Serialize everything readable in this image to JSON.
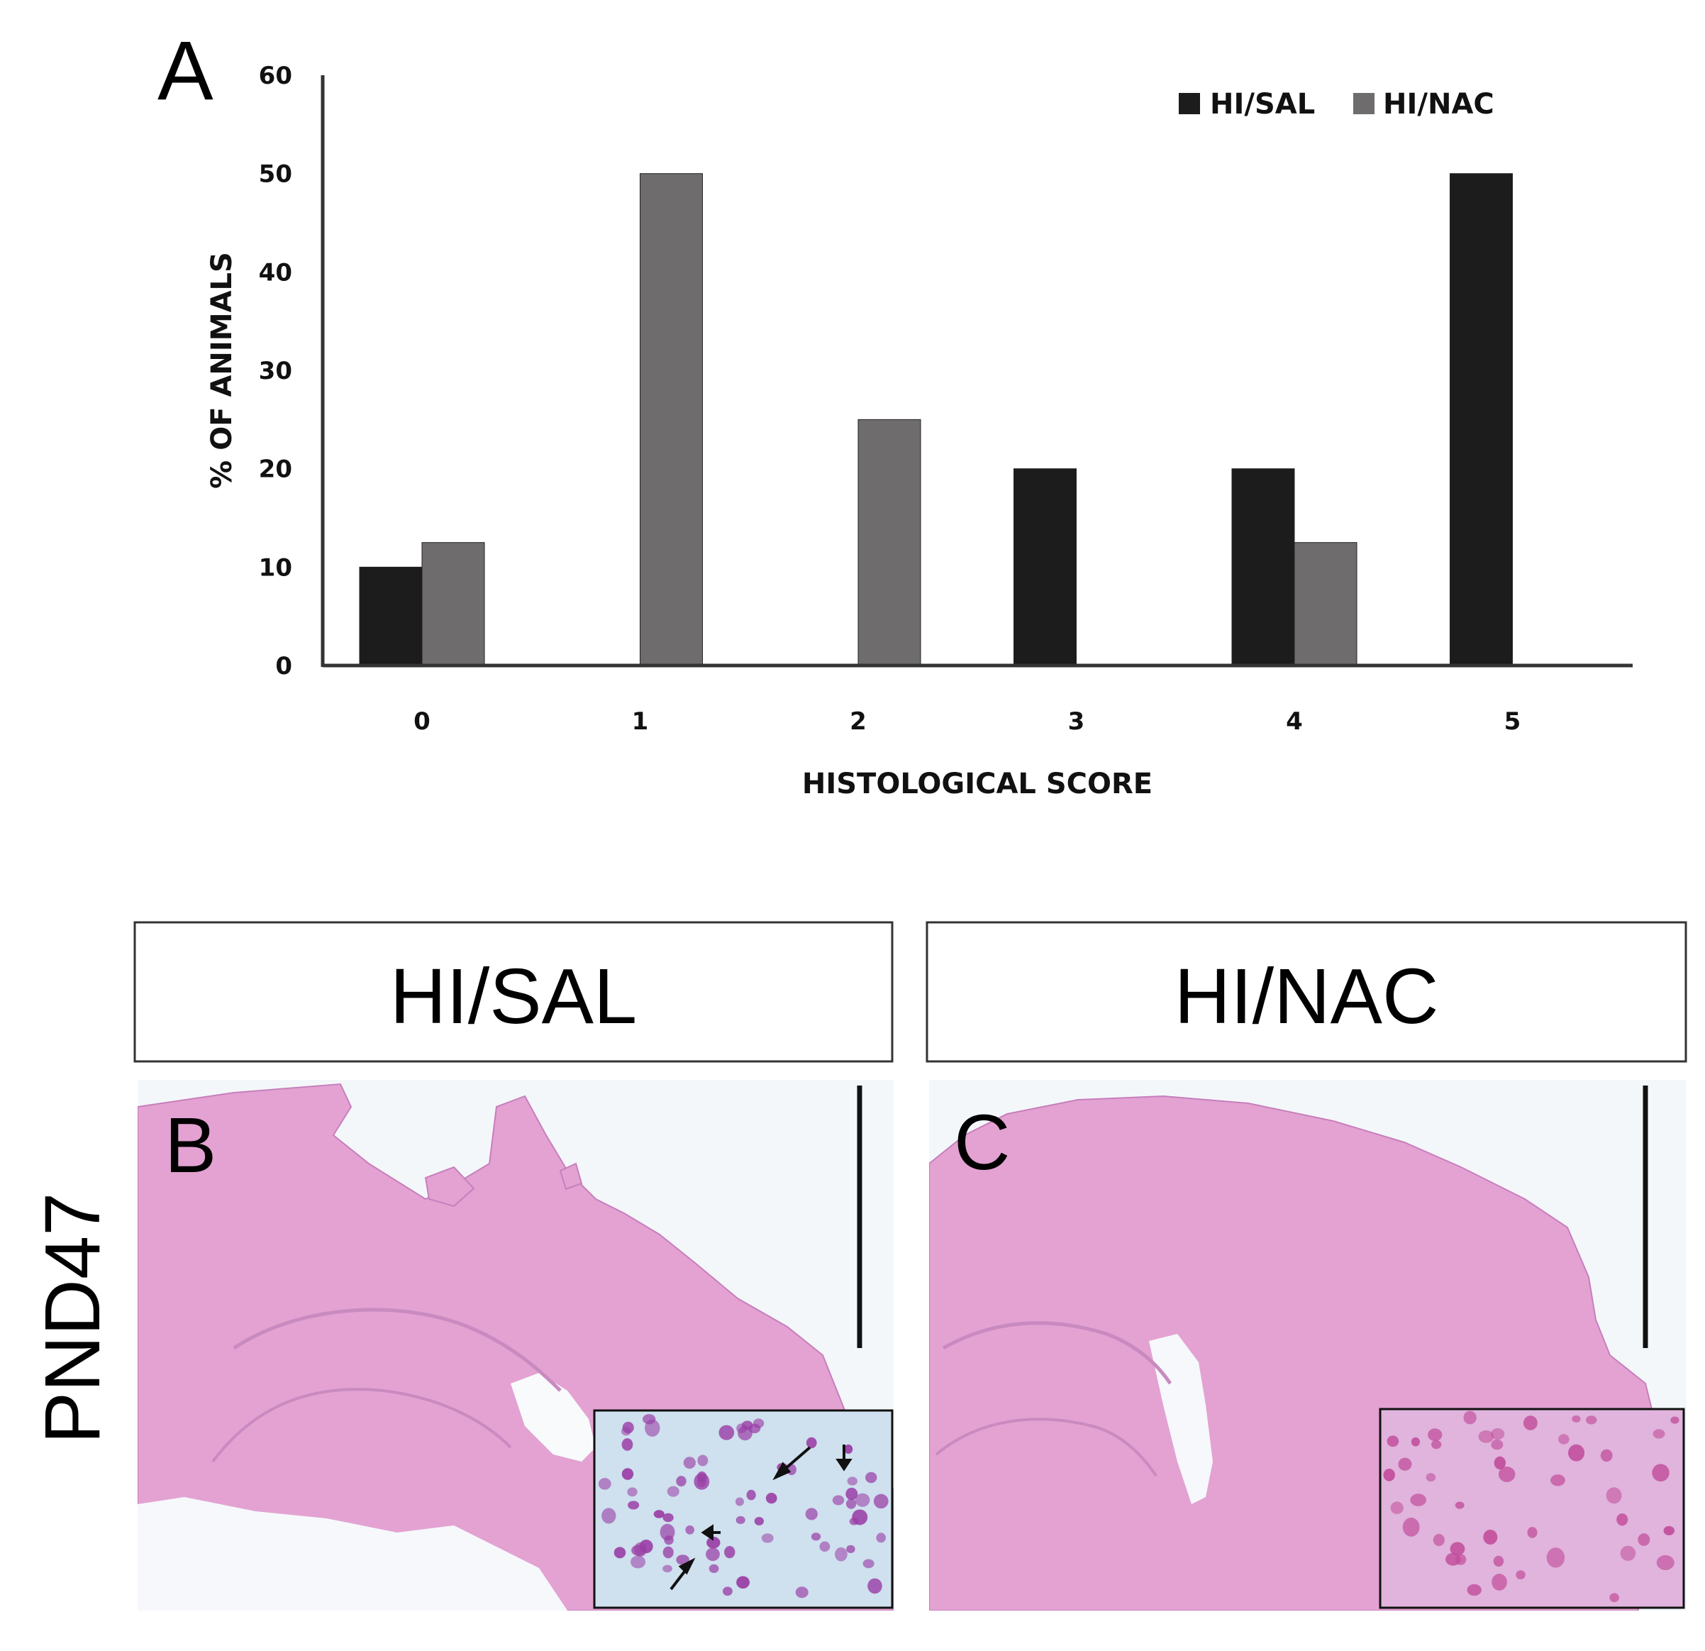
{
  "panels": {
    "a_letter": "A",
    "b_letter": "B",
    "c_letter": "C"
  },
  "headers": {
    "left": "HI/SAL",
    "right": "HI/NAC"
  },
  "side_label": "PND47",
  "colors": {
    "hi_sal": "#1c1c1c",
    "hi_nac": "#6e6c6c",
    "tissue": "#e3a2d2",
    "tissue_dark": "#c77fbc",
    "inset_b_bg": "#cfe0ee",
    "inset_c_bg": "#e0b4dc",
    "nucleus": "#9a3fa6"
  },
  "chart_data": {
    "type": "bar",
    "categories": [
      "0",
      "1",
      "2",
      "3",
      "4",
      "5"
    ],
    "series": [
      {
        "name": "HI/SAL",
        "values": [
          10,
          0,
          0,
          20,
          20,
          50
        ]
      },
      {
        "name": "HI/NAC",
        "values": [
          12.5,
          50,
          25,
          0,
          12.5,
          0
        ]
      }
    ],
    "xlabel": "HISTOLOGICAL SCORE",
    "ylabel": "% OF ANIMALS",
    "yticks": [
      0,
      10,
      20,
      30,
      40,
      50,
      60
    ],
    "ylim": [
      0,
      60
    ],
    "grid": false,
    "legend": "top-right"
  }
}
